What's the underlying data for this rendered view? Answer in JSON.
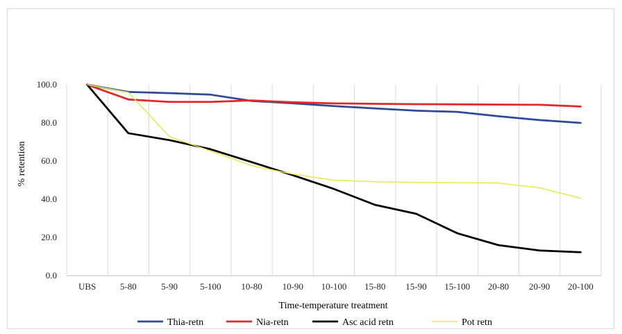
{
  "chart_data": {
    "type": "line",
    "xlabel": "Time-temperature treatment",
    "ylabel": "% retention",
    "ylim": [
      0,
      100
    ],
    "yticks": [
      "0.0",
      "20.0",
      "40.0",
      "60.0",
      "80.0",
      "100.0"
    ],
    "grid": "vertical",
    "legend": "bottom",
    "categories": [
      "UBS",
      "5-80",
      "5-90",
      "5-100",
      "10-80",
      "10-90",
      "10-100",
      "15-80",
      "15-90",
      "15-100",
      "20-80",
      "20-90",
      "20-100"
    ],
    "series": [
      {
        "name": "Thia-retn",
        "color": "#2e4a9a",
        "values": [
          100,
          96.2,
          95.6,
          94.8,
          91.5,
          90.3,
          88.8,
          87.6,
          86.4,
          85.8,
          83.5,
          81.5,
          80.0
        ]
      },
      {
        "name": "Nia-retn",
        "color": "#e0282a",
        "values": [
          100,
          92.3,
          91.0,
          91.0,
          91.8,
          90.8,
          90.2,
          90.0,
          89.8,
          89.7,
          89.6,
          89.5,
          88.6
        ]
      },
      {
        "name": "Asc acid retn",
        "color": "#000000",
        "values": [
          100,
          74.6,
          71.0,
          66.2,
          59.5,
          52.6,
          45.4,
          37.1,
          32.4,
          22.2,
          16.0,
          13.2,
          12.3
        ]
      },
      {
        "name": "Pot retn",
        "color": "#e8e84a",
        "values": [
          100,
          96.0,
          72.8,
          65.3,
          57.6,
          53.2,
          50.0,
          49.2,
          48.8,
          48.7,
          48.5,
          46.0,
          40.6
        ]
      }
    ]
  }
}
